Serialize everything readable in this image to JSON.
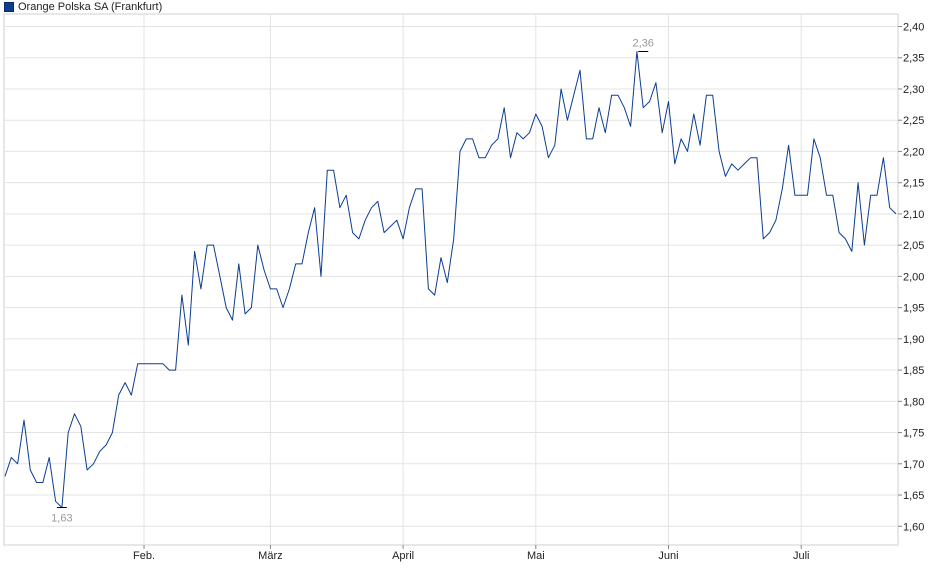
{
  "legend": {
    "label": "Orange Polska SA (Frankfurt)",
    "color": "#0b3d91"
  },
  "chart_data": {
    "type": "line",
    "title": "",
    "xlabel": "",
    "ylabel": "",
    "ylim": [
      1.57,
      2.42
    ],
    "y_ticks": [
      "2,40",
      "2,35",
      "2,30",
      "2,25",
      "2,20",
      "2,15",
      "2,10",
      "2,05",
      "2,00",
      "1,95",
      "1,90",
      "1,85",
      "1,80",
      "1,75",
      "1,70",
      "1,65",
      "1,60"
    ],
    "x_ticks": [
      "Feb.",
      "März",
      "April",
      "Mai",
      "Juni",
      "Juli"
    ],
    "x_tick_index": [
      22,
      42,
      63,
      84,
      105,
      126
    ],
    "grid": true,
    "line_color": "#0b3d91",
    "annotations": [
      {
        "label": "1,63",
        "index": 9,
        "value": 1.63,
        "position": "below"
      },
      {
        "label": "2,36",
        "index": 101,
        "value": 2.36,
        "position": "above"
      }
    ],
    "series": [
      {
        "values": [
          1.68,
          1.71,
          1.7,
          1.77,
          1.69,
          1.67,
          1.67,
          1.71,
          1.64,
          1.63,
          1.75,
          1.78,
          1.76,
          1.69,
          1.7,
          1.72,
          1.73,
          1.75,
          1.81,
          1.83,
          1.81,
          1.86,
          1.86,
          1.86,
          1.86,
          1.86,
          1.85,
          1.85,
          1.97,
          1.89,
          2.04,
          1.98,
          2.05,
          2.05,
          2.0,
          1.95,
          1.93,
          2.02,
          1.94,
          1.95,
          2.05,
          2.01,
          1.98,
          1.98,
          1.95,
          1.98,
          2.02,
          2.02,
          2.07,
          2.11,
          2.0,
          2.17,
          2.17,
          2.11,
          2.13,
          2.07,
          2.06,
          2.09,
          2.11,
          2.12,
          2.07,
          2.08,
          2.09,
          2.06,
          2.11,
          2.14,
          2.14,
          1.98,
          1.97,
          2.03,
          1.99,
          2.06,
          2.2,
          2.22,
          2.22,
          2.19,
          2.19,
          2.21,
          2.22,
          2.27,
          2.19,
          2.23,
          2.22,
          2.23,
          2.26,
          2.24,
          2.19,
          2.21,
          2.3,
          2.25,
          2.29,
          2.33,
          2.22,
          2.22,
          2.27,
          2.23,
          2.29,
          2.29,
          2.27,
          2.24,
          2.36,
          2.27,
          2.28,
          2.31,
          2.23,
          2.28,
          2.18,
          2.22,
          2.2,
          2.26,
          2.21,
          2.29,
          2.29,
          2.2,
          2.16,
          2.18,
          2.17,
          2.18,
          2.19,
          2.19,
          2.06,
          2.07,
          2.09,
          2.14,
          2.21,
          2.13,
          2.13,
          2.13,
          2.22,
          2.19,
          2.13,
          2.13,
          2.07,
          2.06,
          2.04,
          2.15,
          2.05,
          2.13,
          2.13,
          2.19,
          2.11,
          2.1
        ]
      }
    ]
  }
}
